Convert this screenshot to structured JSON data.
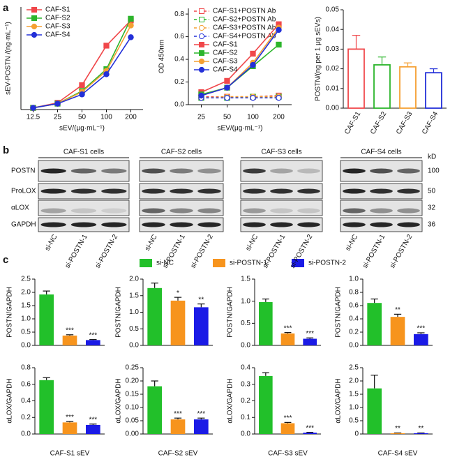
{
  "panel_labels": [
    "a",
    "b",
    "c"
  ],
  "chart_data": [
    {
      "type": "line",
      "ylabel": "sEV-POSTN /(ng·mL⁻¹)",
      "xlabel": "sEV/(μg·mL⁻¹)",
      "categories": [
        "12.5",
        "25",
        "50",
        "100",
        "200"
      ],
      "ylim": [
        -0.1,
        6
      ],
      "legend": "upper left",
      "series": [
        {
          "name": "CAF-S1",
          "color": "#f0474a",
          "marker": "square",
          "dashed": false,
          "values": [
            0,
            0.3,
            1.35,
            3.7,
            5.2
          ]
        },
        {
          "name": "CAF-S2",
          "color": "#2cb52c",
          "marker": "square",
          "dashed": false,
          "values": [
            0,
            0.25,
            1.0,
            2.3,
            5.3
          ]
        },
        {
          "name": "CAF-S3",
          "color": "#f5a033",
          "marker": "circle",
          "dashed": false,
          "values": [
            0,
            0.25,
            0.95,
            2.2,
            4.9
          ]
        },
        {
          "name": "CAF-S4",
          "color": "#2330d8",
          "marker": "circle",
          "dashed": false,
          "values": [
            0,
            0.25,
            0.8,
            2.0,
            4.2
          ]
        }
      ]
    },
    {
      "type": "line",
      "ylabel": "OD 450nm",
      "xlabel": "sEV/(μg·mL⁻¹)",
      "categories": [
        "25",
        "50",
        "100",
        "200"
      ],
      "ylim": [
        0,
        0.85
      ],
      "legend": "upper left",
      "yticks": [
        {
          "value": 0,
          "label": "0.0"
        },
        0.2,
        0.4,
        0.6,
        0.8
      ],
      "series": [
        {
          "name": "CAF-S1+POSTN Ab",
          "color": "#f0474a",
          "marker": "square",
          "dashed": true,
          "values": [
            0.07,
            0.07,
            0.07,
            0.08
          ]
        },
        {
          "name": "CAF-S2+POSTN Ab",
          "color": "#2cb52c",
          "marker": "square",
          "dashed": true,
          "values": [
            0.06,
            0.06,
            0.07,
            0.07
          ]
        },
        {
          "name": "CAF-S3+POSTN Ab",
          "color": "#f5a033",
          "marker": "circle",
          "dashed": true,
          "values": [
            0.06,
            0.07,
            0.07,
            0.07
          ]
        },
        {
          "name": "CAF-S4+POSTN Ab",
          "color": "#2330d8",
          "marker": "circle",
          "dashed": true,
          "values": [
            0.06,
            0.06,
            0.06,
            0.06
          ]
        },
        {
          "name": "CAF-S1",
          "color": "#f0474a",
          "marker": "square",
          "dashed": false,
          "values": [
            0.11,
            0.21,
            0.45,
            0.71
          ]
        },
        {
          "name": "CAF-S2",
          "color": "#2cb52c",
          "marker": "square",
          "dashed": false,
          "values": [
            0.09,
            0.15,
            0.34,
            0.53
          ]
        },
        {
          "name": "CAF-S3",
          "color": "#f5a033",
          "marker": "circle",
          "dashed": false,
          "values": [
            0.08,
            0.15,
            0.37,
            0.68
          ]
        },
        {
          "name": "CAF-S4",
          "color": "#2330d8",
          "marker": "circle",
          "dashed": false,
          "values": [
            0.08,
            0.15,
            0.35,
            0.66
          ]
        }
      ]
    },
    {
      "type": "bar",
      "bar_style": "outline",
      "ylabel": "POSTN/(ng per 1 μg sEVs)",
      "categories": [
        "CAF-S1",
        "CAF-S2",
        "CAF-S3",
        "CAF-S4"
      ],
      "values": [
        0.03,
        0.022,
        0.021,
        0.018
      ],
      "errors": [
        0.007,
        0.004,
        0.002,
        0.002
      ],
      "colors": [
        "#f0474a",
        "#2cb52c",
        "#f5a033",
        "#2330d8"
      ],
      "ylim": [
        0,
        0.05
      ],
      "yticks": [
        {
          "value": 0,
          "label": "0.00"
        },
        {
          "value": 0.01,
          "label": "0.01"
        },
        {
          "value": 0.02,
          "label": "0.02"
        },
        {
          "value": 0.03,
          "label": "0.03"
        },
        {
          "value": 0.04,
          "label": "0.04"
        },
        {
          "value": 0.05,
          "label": "0.05"
        }
      ]
    },
    {
      "type": "bar",
      "bar_style": "filled",
      "ylabel": "POSTN/GAPDH",
      "values": [
        1.92,
        0.37,
        0.2
      ],
      "errors": [
        0.13,
        0.03,
        0.02
      ],
      "annotations": [
        null,
        "***",
        "***"
      ],
      "ylim": [
        0,
        2.5
      ],
      "yticks": [
        {
          "value": 0,
          "label": "0.0"
        },
        0.5,
        {
          "value": 1,
          "label": "1.0"
        },
        1.5,
        {
          "value": 2,
          "label": "2.0"
        },
        2.5
      ]
    },
    {
      "type": "bar",
      "bar_style": "filled",
      "ylabel": "POSTN/GAPDH",
      "values": [
        1.73,
        1.35,
        1.15
      ],
      "errors": [
        0.15,
        0.1,
        0.1
      ],
      "annotations": [
        null,
        "*",
        "**"
      ],
      "ylim": [
        0,
        2
      ],
      "yticks": [
        {
          "value": 0,
          "label": "0.0"
        },
        0.5,
        {
          "value": 1,
          "label": "1.0"
        },
        1.5,
        {
          "value": 2,
          "label": "2.0"
        }
      ]
    },
    {
      "type": "bar",
      "bar_style": "filled",
      "ylabel": "POSTN/GAPDH",
      "values": [
        0.98,
        0.27,
        0.15
      ],
      "errors": [
        0.07,
        0.02,
        0.02
      ],
      "annotations": [
        null,
        "***",
        "***"
      ],
      "ylim": [
        0,
        1.5
      ],
      "yticks": [
        {
          "value": 0,
          "label": "0.0"
        },
        0.5,
        {
          "value": 1,
          "label": "1.0"
        },
        1.5
      ]
    },
    {
      "type": "bar",
      "bar_style": "filled",
      "ylabel": "POSTN/GAPDH",
      "values": [
        0.64,
        0.43,
        0.17
      ],
      "errors": [
        0.06,
        0.04,
        0.02
      ],
      "annotations": [
        null,
        "**",
        "***"
      ],
      "ylim": [
        0,
        1
      ],
      "yticks": [
        {
          "value": 0,
          "label": "0.0"
        },
        0.2,
        0.4,
        0.6,
        0.8,
        {
          "value": 1,
          "label": "1.0"
        }
      ]
    },
    {
      "type": "bar",
      "bar_style": "filled",
      "ylabel": "αLOX/GAPDH",
      "xlabel": "CAF-S1 sEV",
      "values": [
        0.65,
        0.14,
        0.11
      ],
      "errors": [
        0.03,
        0.01,
        0.01
      ],
      "annotations": [
        null,
        "***",
        "***"
      ],
      "ylim": [
        0,
        0.8
      ],
      "yticks": [
        {
          "value": 0,
          "label": "0.0"
        },
        0.2,
        0.4,
        0.6,
        0.8
      ]
    },
    {
      "type": "bar",
      "bar_style": "filled",
      "ylabel": "αLOX/GAPDH",
      "xlabel": "CAF-S2 sEV",
      "values": [
        0.18,
        0.055,
        0.055
      ],
      "errors": [
        0.02,
        0.005,
        0.005
      ],
      "annotations": [
        null,
        "***",
        "***"
      ],
      "ylim": [
        0,
        0.25
      ],
      "yticks": [
        {
          "value": 0,
          "label": "0.00"
        },
        0.05,
        {
          "value": 0.1,
          "label": "0.10"
        },
        0.15,
        {
          "value": 0.2,
          "label": "0.20"
        },
        0.25
      ]
    },
    {
      "type": "bar",
      "bar_style": "filled",
      "ylabel": "αLOX/GAPDH",
      "xlabel": "CAF-S3 sEV",
      "values": [
        0.35,
        0.065,
        0.008
      ],
      "errors": [
        0.02,
        0.005,
        0.002
      ],
      "annotations": [
        null,
        "***",
        "***"
      ],
      "ylim": [
        0,
        0.4
      ],
      "yticks": [
        {
          "value": 0,
          "label": "0.0"
        },
        0.1,
        0.2,
        0.3,
        0.4
      ]
    },
    {
      "type": "bar",
      "bar_style": "filled",
      "ylabel": "αLOX/GAPDH",
      "xlabel": "CAF-S4 sEV",
      "values": [
        1.72,
        0.03,
        0.03
      ],
      "errors": [
        0.5,
        0.01,
        0.01
      ],
      "annotations": [
        null,
        "**",
        "**"
      ],
      "ylim": [
        0,
        2.5
      ],
      "yticks": [
        0,
        0.5,
        {
          "value": 1,
          "label": "1.0"
        },
        1.5,
        {
          "value": 2,
          "label": "2.0"
        },
        2.5
      ]
    }
  ],
  "c_legend": [
    {
      "name": "si-NC",
      "color": "#22c02a"
    },
    {
      "name": "si-POSTN-1",
      "color": "#f7941d"
    },
    {
      "name": "si-POSTN-2",
      "color": "#1a1ae6"
    }
  ],
  "blots": {
    "panels": [
      "CAF-S1 cells",
      "CAF-S2 cells",
      "CAF-S3 cells",
      "CAF-S4 cells"
    ],
    "rows": [
      "POSTN",
      "ProLOX",
      "αLOX",
      "GAPDH"
    ],
    "lanes": [
      "si-NC",
      "si-POSTN-1",
      "si-POSTN-2"
    ],
    "kd_header": "kD",
    "kd": [
      "100",
      "50",
      "32",
      "36"
    ]
  }
}
